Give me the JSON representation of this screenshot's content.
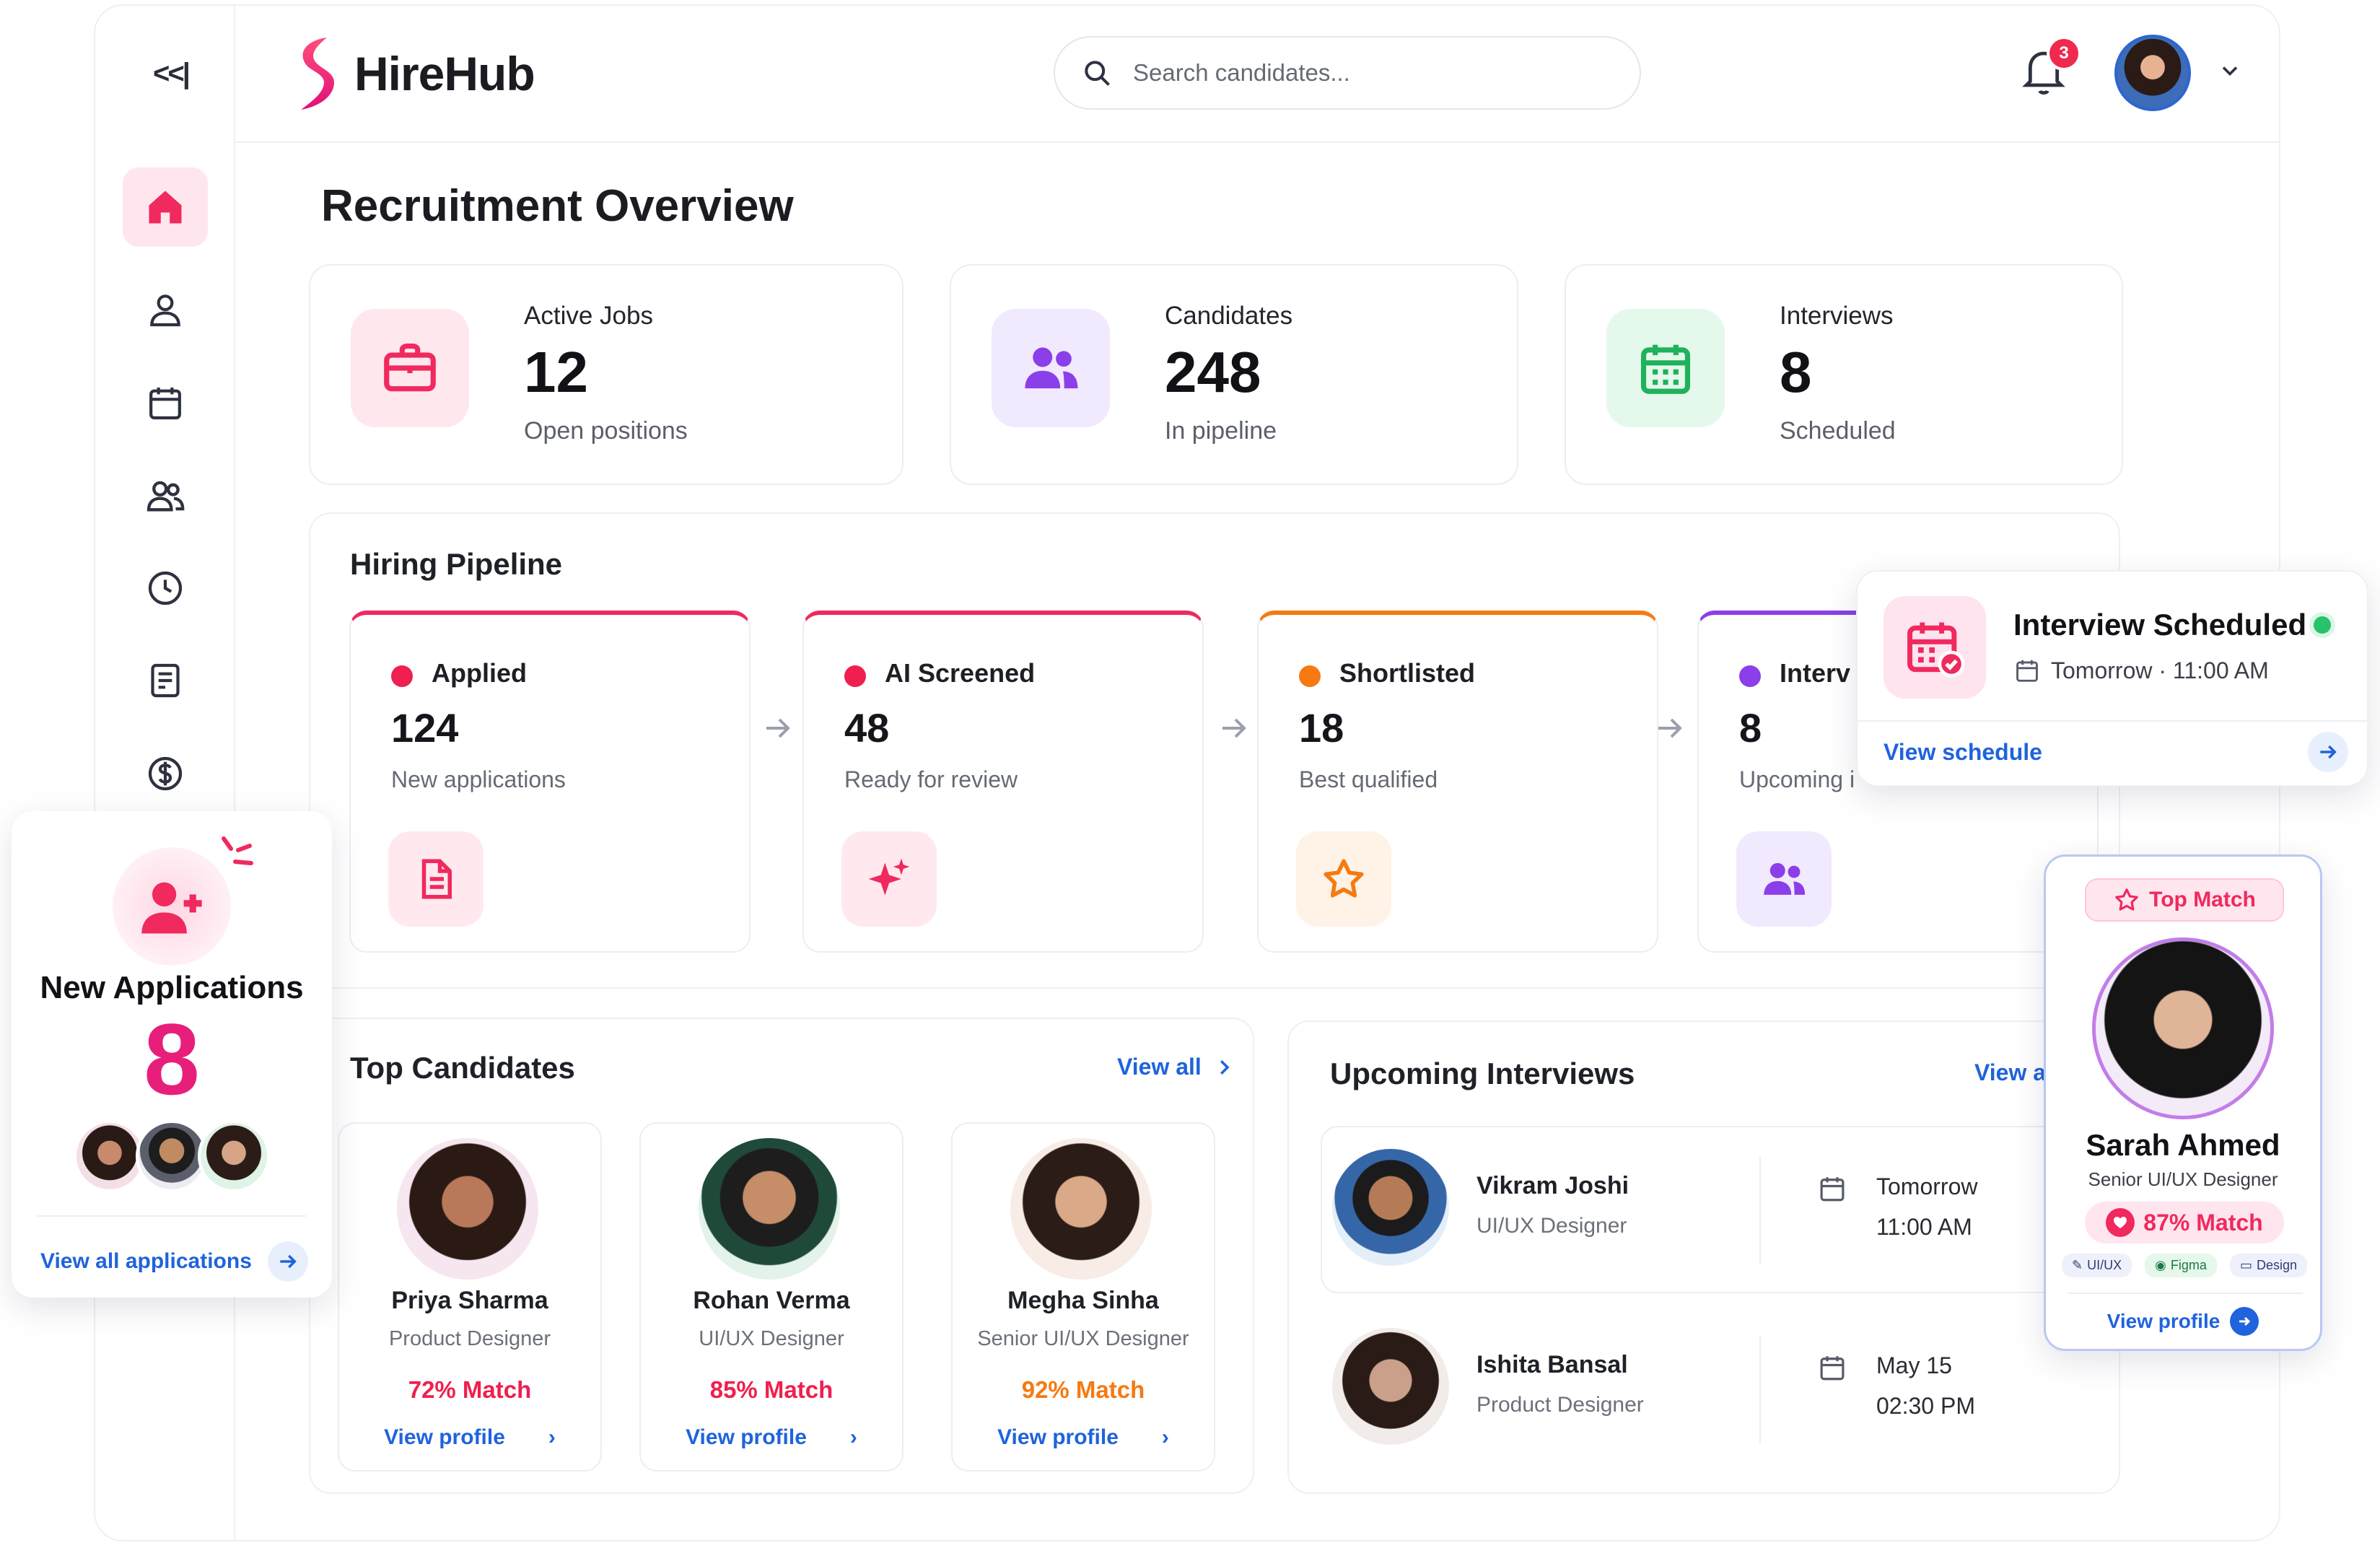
{
  "app": {
    "brand": "HireHub",
    "collapse_label": "<<|",
    "search_placeholder": "Search candidates...",
    "notification_count": "3"
  },
  "sidebar": {
    "items": [
      {
        "name": "home",
        "icon": "home-icon"
      },
      {
        "name": "profile",
        "icon": "user-icon"
      },
      {
        "name": "calendar",
        "icon": "calendar-icon"
      },
      {
        "name": "team",
        "icon": "users-icon"
      },
      {
        "name": "history",
        "icon": "clock-icon"
      },
      {
        "name": "reports",
        "icon": "document-icon"
      },
      {
        "name": "billing",
        "icon": "dollar-icon"
      }
    ]
  },
  "page": {
    "title": "Recruitment Overview"
  },
  "stats": [
    {
      "label": "Active Jobs",
      "value": "12",
      "sub": "Open positions",
      "icon": "briefcase-icon",
      "color": "#f0295e"
    },
    {
      "label": "Candidates",
      "value": "248",
      "sub": "In pipeline",
      "icon": "users-icon",
      "color": "#8b3fe8"
    },
    {
      "label": "Interviews",
      "value": "8",
      "sub": "Scheduled",
      "icon": "calendar-icon",
      "color": "#1fb25a"
    }
  ],
  "pipeline": {
    "title": "Hiring Pipeline",
    "stages": [
      {
        "label": "Applied",
        "value": "124",
        "sub": "New applications",
        "color": "#ef1f4f"
      },
      {
        "label": "AI Screened",
        "value": "48",
        "sub": "Ready for review",
        "color": "#ef1f4f"
      },
      {
        "label": "Shortlisted",
        "value": "18",
        "sub": "Best qualified",
        "color": "#f57a12"
      },
      {
        "label": "Interv",
        "value": "8",
        "sub": "Upcoming i",
        "color": "#8a3fe8"
      }
    ]
  },
  "top_candidates": {
    "title": "Top Candidates",
    "view_all": "View all",
    "items": [
      {
        "name": "Priya Sharma",
        "role": "Product Designer",
        "match": "72% Match",
        "link": "View profile",
        "color": "#ef1f4f"
      },
      {
        "name": "Rohan Verma",
        "role": "UI/UX Designer",
        "match": "85% Match",
        "link": "View profile",
        "color": "#ef1f4f"
      },
      {
        "name": "Megha Sinha",
        "role": "Senior UI/UX Designer",
        "match": "92% Match",
        "link": "View profile",
        "color": "#f57a12"
      }
    ]
  },
  "upcoming_interviews": {
    "title": "Upcoming Interviews",
    "view_all": "View a",
    "items": [
      {
        "name": "Vikram Joshi",
        "role": "UI/UX Designer",
        "date": "Tomorrow",
        "time": "11:00 AM"
      },
      {
        "name": "Ishita Bansal",
        "role": "Product Designer",
        "date": "May 15",
        "time": "02:30 PM"
      }
    ]
  },
  "new_applications": {
    "title": "New Applications",
    "count": "8",
    "link": "View all applications"
  },
  "interview_scheduled": {
    "title": "Interview Scheduled",
    "when": "Tomorrow · 11:00 AM",
    "link": "View schedule"
  },
  "top_match": {
    "badge": "Top Match",
    "name": "Sarah Ahmed",
    "role": "Senior UI/UX Designer",
    "match": "87% Match",
    "tags": [
      "UI/UX",
      "Figma",
      "Design"
    ],
    "link": "View profile"
  }
}
